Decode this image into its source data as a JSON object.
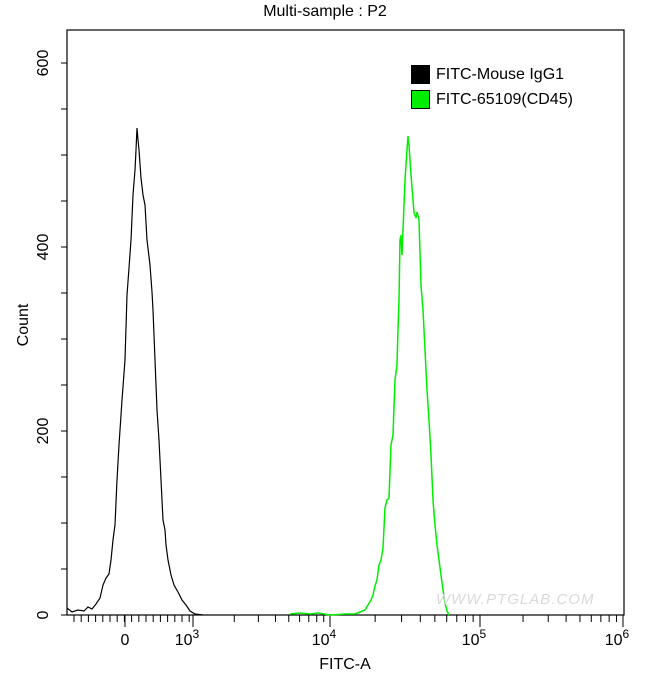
{
  "chart_data": {
    "type": "area",
    "subtype": "flow-cytometry-histogram-overlay",
    "title": "Multi-sample : P2",
    "xlabel": "FITC-A",
    "ylabel": "Count",
    "xscale": "biexponential",
    "xticks": [
      "0",
      "10^3",
      "10^4",
      "10^5",
      "10^6"
    ],
    "yticks": [
      0,
      200,
      400,
      600
    ],
    "ylim": [
      0,
      620
    ],
    "grid": false,
    "legend_position": "top-right",
    "legend": [
      "FITC-Mouse IgG1",
      "FITC-65109(CD45)"
    ],
    "series": [
      {
        "name": "FITC-Mouse IgG1",
        "color": "#000000",
        "peak_x": "~2x10^2",
        "peak_count": 529,
        "points": [
          [
            67,
            608
          ],
          [
            72,
            612
          ],
          [
            78,
            610
          ],
          [
            84,
            611
          ],
          [
            88,
            607
          ],
          [
            92,
            609
          ],
          [
            96,
            604
          ],
          [
            100,
            598
          ],
          [
            103,
            585
          ],
          [
            106,
            578
          ],
          [
            109,
            574
          ],
          [
            111,
            560
          ],
          [
            113,
            540
          ],
          [
            115,
            525
          ],
          [
            117,
            480
          ],
          [
            119,
            445
          ],
          [
            122,
            400
          ],
          [
            125,
            360
          ],
          [
            127,
            295
          ],
          [
            129,
            268
          ],
          [
            131,
            240
          ],
          [
            133,
            195
          ],
          [
            135,
            170
          ],
          [
            136,
            150
          ],
          [
            137,
            128
          ],
          [
            138,
            140
          ],
          [
            139,
            150
          ],
          [
            141,
            178
          ],
          [
            143,
            195
          ],
          [
            145,
            205
          ],
          [
            147,
            240
          ],
          [
            150,
            265
          ],
          [
            152,
            292
          ],
          [
            153,
            310
          ],
          [
            155,
            360
          ],
          [
            157,
            410
          ],
          [
            159,
            440
          ],
          [
            161,
            480
          ],
          [
            163,
            520
          ],
          [
            165,
            530
          ],
          [
            166,
            545
          ],
          [
            168,
            560
          ],
          [
            171,
            575
          ],
          [
            174,
            585
          ],
          [
            178,
            592
          ],
          [
            182,
            600
          ],
          [
            186,
            605
          ],
          [
            190,
            611
          ],
          [
            195,
            614
          ],
          [
            203,
            615
          ]
        ]
      },
      {
        "name": "FITC-65109(CD45)",
        "color": "#00ee00",
        "peak_x": "~3.3x10^4",
        "peak_count": 521,
        "points": [
          [
            290,
            614
          ],
          [
            300,
            613
          ],
          [
            310,
            614
          ],
          [
            318,
            613
          ],
          [
            330,
            615
          ],
          [
            345,
            614
          ],
          [
            355,
            614
          ],
          [
            360,
            612
          ],
          [
            365,
            610
          ],
          [
            368,
            605
          ],
          [
            371,
            600
          ],
          [
            373,
            595
          ],
          [
            375,
            586
          ],
          [
            377,
            580
          ],
          [
            379,
            565
          ],
          [
            381,
            560
          ],
          [
            383,
            548
          ],
          [
            385,
            508
          ],
          [
            387,
            500
          ],
          [
            389,
            498
          ],
          [
            391,
            445
          ],
          [
            393,
            435
          ],
          [
            395,
            380
          ],
          [
            397,
            365
          ],
          [
            398,
            330
          ],
          [
            399,
            300
          ],
          [
            400,
            240
          ],
          [
            401,
            235
          ],
          [
            402,
            255
          ],
          [
            403,
            230
          ],
          [
            405,
            180
          ],
          [
            407,
            150
          ],
          [
            408,
            136
          ],
          [
            409,
            145
          ],
          [
            411,
            175
          ],
          [
            413,
            200
          ],
          [
            414,
            212
          ],
          [
            416,
            218
          ],
          [
            417,
            212
          ],
          [
            419,
            220
          ],
          [
            421,
            285
          ],
          [
            423,
            310
          ],
          [
            425,
            350
          ],
          [
            427,
            390
          ],
          [
            429,
            420
          ],
          [
            431,
            455
          ],
          [
            433,
            500
          ],
          [
            435,
            525
          ],
          [
            437,
            545
          ],
          [
            439,
            560
          ],
          [
            441,
            575
          ],
          [
            443,
            590
          ],
          [
            445,
            603
          ],
          [
            447,
            611
          ],
          [
            449,
            615
          ]
        ]
      }
    ]
  },
  "title": "Multi-sample : P2",
  "axes": {
    "x_label": "FITC-A",
    "y_label": "Count",
    "x_tick_labels": [
      {
        "base": "0",
        "exp": ""
      },
      {
        "base": "10",
        "exp": "3"
      },
      {
        "base": "10",
        "exp": "4"
      },
      {
        "base": "10",
        "exp": "5"
      },
      {
        "base": "10",
        "exp": "6"
      }
    ],
    "y_tick_labels": [
      "0",
      "200",
      "400",
      "600"
    ]
  },
  "legend": {
    "items": [
      {
        "label": "FITC-Mouse IgG1",
        "color": "#000000"
      },
      {
        "label": "FITC-65109(CD45)",
        "color": "#00ee00"
      }
    ]
  },
  "watermark": "WWW.PTGLAB.COM"
}
